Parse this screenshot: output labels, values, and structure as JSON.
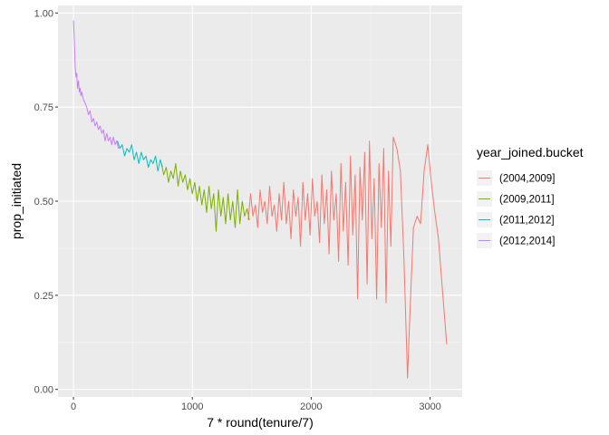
{
  "chart_data": {
    "type": "line",
    "title": "",
    "xlabel": "7 * round(tenure/7)",
    "ylabel": "prop_initiated",
    "xlim": [
      -130,
      3270
    ],
    "ylim": [
      -0.02,
      1.02
    ],
    "x_ticks": [
      0,
      1000,
      2000,
      3000
    ],
    "x_tick_labels": [
      "0",
      "1000",
      "2000",
      "3000"
    ],
    "y_ticks": [
      0,
      0.25,
      0.5,
      0.75,
      1.0
    ],
    "y_tick_labels": [
      "0.00",
      "0.25",
      "0.50",
      "0.75",
      "1.00"
    ],
    "grid": true,
    "legend": {
      "title": "year_joined.bucket",
      "position": "right"
    },
    "colors": {
      "(2004,2009]": "#F8766D",
      "(2009,2011]": "#7CAE00",
      "(2011,2012]": "#00BFC4",
      "(2012,2014]": "#C77CFF"
    },
    "series": [
      {
        "name": "(2004,2009]",
        "x": [
          1470,
          1490,
          1510,
          1530,
          1550,
          1570,
          1590,
          1610,
          1630,
          1650,
          1670,
          1690,
          1710,
          1730,
          1750,
          1770,
          1790,
          1810,
          1830,
          1850,
          1870,
          1890,
          1910,
          1930,
          1950,
          1970,
          1990,
          2010,
          2030,
          2050,
          2070,
          2090,
          2110,
          2130,
          2150,
          2170,
          2190,
          2210,
          2230,
          2250,
          2270,
          2290,
          2310,
          2330,
          2350,
          2370,
          2390,
          2410,
          2430,
          2450,
          2470,
          2490,
          2510,
          2530,
          2550,
          2570,
          2590,
          2610,
          2630,
          2650,
          2670,
          2690,
          2720,
          2750,
          2780,
          2810,
          2830,
          2860,
          2890,
          2920,
          2950,
          2980,
          3010,
          3040,
          3070,
          3100,
          3140
        ],
        "y": [
          0.45,
          0.52,
          0.46,
          0.49,
          0.43,
          0.53,
          0.47,
          0.5,
          0.44,
          0.54,
          0.46,
          0.49,
          0.42,
          0.52,
          0.45,
          0.55,
          0.44,
          0.5,
          0.4,
          0.53,
          0.46,
          0.51,
          0.38,
          0.55,
          0.45,
          0.52,
          0.41,
          0.56,
          0.46,
          0.5,
          0.39,
          0.57,
          0.44,
          0.53,
          0.36,
          0.58,
          0.45,
          0.52,
          0.34,
          0.6,
          0.42,
          0.55,
          0.33,
          0.62,
          0.41,
          0.57,
          0.24,
          0.59,
          0.45,
          0.63,
          0.28,
          0.66,
          0.4,
          0.56,
          0.24,
          0.6,
          0.43,
          0.64,
          0.23,
          0.58,
          0.38,
          0.67,
          0.64,
          0.58,
          0.35,
          0.03,
          0.2,
          0.43,
          0.46,
          0.44,
          0.58,
          0.65,
          0.55,
          0.47,
          0.4,
          0.28,
          0.12
        ]
      },
      {
        "name": "(2009,2011]",
        "x": [
          740,
          760,
          780,
          800,
          820,
          840,
          860,
          880,
          900,
          920,
          940,
          960,
          980,
          1000,
          1020,
          1040,
          1060,
          1080,
          1100,
          1120,
          1140,
          1160,
          1180,
          1200,
          1220,
          1240,
          1260,
          1280,
          1300,
          1320,
          1340,
          1360,
          1380,
          1400,
          1420,
          1440,
          1460,
          1480
        ],
        "y": [
          0.6,
          0.57,
          0.59,
          0.55,
          0.58,
          0.56,
          0.6,
          0.54,
          0.58,
          0.55,
          0.57,
          0.53,
          0.56,
          0.52,
          0.55,
          0.5,
          0.54,
          0.49,
          0.53,
          0.47,
          0.54,
          0.48,
          0.52,
          0.42,
          0.53,
          0.46,
          0.51,
          0.44,
          0.52,
          0.45,
          0.5,
          0.43,
          0.53,
          0.44,
          0.5,
          0.46,
          0.48,
          0.45
        ]
      },
      {
        "name": "(2011,2012]",
        "x": [
          370,
          390,
          410,
          430,
          450,
          470,
          490,
          510,
          530,
          550,
          570,
          590,
          610,
          630,
          650,
          670,
          690,
          710,
          730,
          750
        ],
        "y": [
          0.66,
          0.64,
          0.65,
          0.62,
          0.64,
          0.63,
          0.65,
          0.61,
          0.63,
          0.6,
          0.63,
          0.61,
          0.62,
          0.59,
          0.61,
          0.6,
          0.62,
          0.58,
          0.61,
          0.59
        ]
      },
      {
        "name": "(2012,2014]",
        "x": [
          0,
          7,
          14,
          21,
          28,
          35,
          42,
          49,
          56,
          63,
          70,
          84,
          98,
          112,
          126,
          140,
          154,
          168,
          182,
          196,
          210,
          224,
          238,
          252,
          266,
          280,
          294,
          308,
          322,
          336,
          350,
          364,
          378
        ],
        "y": [
          0.98,
          0.93,
          0.86,
          0.83,
          0.84,
          0.8,
          0.82,
          0.79,
          0.8,
          0.78,
          0.79,
          0.77,
          0.76,
          0.75,
          0.73,
          0.74,
          0.71,
          0.72,
          0.7,
          0.71,
          0.69,
          0.7,
          0.68,
          0.69,
          0.66,
          0.68,
          0.66,
          0.67,
          0.65,
          0.67,
          0.65,
          0.66,
          0.64
        ]
      }
    ]
  }
}
